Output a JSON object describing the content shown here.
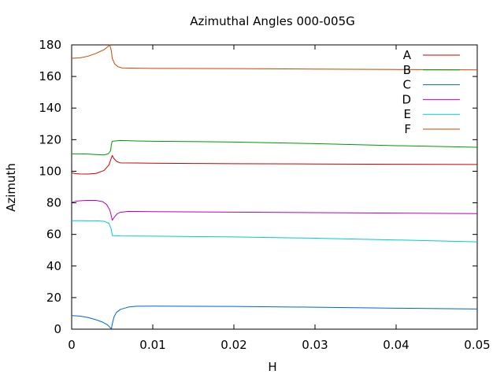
{
  "chart_data": {
    "type": "line",
    "title": "Azimuthal Angles 000-005G",
    "xlabel": "H",
    "ylabel": "Azimuth",
    "xlim": [
      0,
      0.05
    ],
    "ylim": [
      0,
      180
    ],
    "xticks": [
      0,
      0.01,
      0.02,
      0.03,
      0.04,
      0.05
    ],
    "xtick_labels": [
      "0",
      "0.01",
      "0.02",
      "0.03",
      "0.04",
      "0.05"
    ],
    "yticks": [
      0,
      20,
      40,
      60,
      80,
      100,
      120,
      140,
      160,
      180
    ],
    "ytick_labels": [
      "0",
      "20",
      "40",
      "60",
      "80",
      "100",
      "120",
      "140",
      "160",
      "180"
    ],
    "grid": false,
    "legend_position": "top-right",
    "series": [
      {
        "name": "A",
        "color": "#cc0000",
        "points": [
          [
            0,
            99
          ],
          [
            0.0005,
            98.5
          ],
          [
            0.001,
            98.3
          ],
          [
            0.002,
            98.2
          ],
          [
            0.003,
            98.6
          ],
          [
            0.004,
            100.5
          ],
          [
            0.0046,
            104
          ],
          [
            0.0049,
            108.5
          ],
          [
            0.005,
            110
          ],
          [
            0.0052,
            108
          ],
          [
            0.0056,
            106
          ],
          [
            0.006,
            105.3
          ],
          [
            0.008,
            105.2
          ],
          [
            0.01,
            105.1
          ],
          [
            0.015,
            104.9
          ],
          [
            0.02,
            104.8
          ],
          [
            0.03,
            104.6
          ],
          [
            0.04,
            104.4
          ],
          [
            0.05,
            104.3
          ]
        ]
      },
      {
        "name": "B",
        "color": "#009900",
        "points": [
          [
            0,
            111
          ],
          [
            0.001,
            111
          ],
          [
            0.002,
            110.9
          ],
          [
            0.003,
            110.6
          ],
          [
            0.004,
            110.3
          ],
          [
            0.0045,
            111
          ],
          [
            0.0048,
            113
          ],
          [
            0.0049,
            117
          ],
          [
            0.005,
            119
          ],
          [
            0.006,
            119.5
          ],
          [
            0.008,
            119.2
          ],
          [
            0.01,
            119
          ],
          [
            0.02,
            118.5
          ],
          [
            0.03,
            117.5
          ],
          [
            0.04,
            116.2
          ],
          [
            0.05,
            115.2
          ]
        ]
      },
      {
        "name": "C",
        "color": "#0066cc",
        "points": [
          [
            0,
            8.6
          ],
          [
            0.001,
            8.3
          ],
          [
            0.002,
            7.4
          ],
          [
            0.003,
            6
          ],
          [
            0.0038,
            4.5
          ],
          [
            0.0044,
            2.8
          ],
          [
            0.0047,
            1.2
          ],
          [
            0.0049,
            0.3
          ],
          [
            0.005,
            3
          ],
          [
            0.0052,
            7.5
          ],
          [
            0.0055,
            10.5
          ],
          [
            0.006,
            12.5
          ],
          [
            0.007,
            14
          ],
          [
            0.008,
            14.5
          ],
          [
            0.01,
            14.6
          ],
          [
            0.02,
            14.4
          ],
          [
            0.03,
            13.9
          ],
          [
            0.04,
            13.3
          ],
          [
            0.05,
            12.8
          ]
        ]
      },
      {
        "name": "D",
        "color": "#bb00bb",
        "points": [
          [
            0,
            80.3
          ],
          [
            0.0005,
            81
          ],
          [
            0.001,
            81.3
          ],
          [
            0.002,
            81.6
          ],
          [
            0.003,
            81.5
          ],
          [
            0.0038,
            80.8
          ],
          [
            0.0043,
            79
          ],
          [
            0.0047,
            75.5
          ],
          [
            0.0049,
            71.5
          ],
          [
            0.005,
            69
          ],
          [
            0.0052,
            70.5
          ],
          [
            0.0056,
            73
          ],
          [
            0.006,
            74
          ],
          [
            0.007,
            74.6
          ],
          [
            0.01,
            74.4
          ],
          [
            0.02,
            74.1
          ],
          [
            0.03,
            73.8
          ],
          [
            0.04,
            73.5
          ],
          [
            0.05,
            73.2
          ]
        ]
      },
      {
        "name": "E",
        "color": "#00cccc",
        "points": [
          [
            0,
            68.7
          ],
          [
            0.001,
            68.7
          ],
          [
            0.002,
            68.6
          ],
          [
            0.003,
            68.6
          ],
          [
            0.004,
            68.3
          ],
          [
            0.0046,
            67
          ],
          [
            0.0049,
            63
          ],
          [
            0.005,
            59.3
          ],
          [
            0.006,
            59
          ],
          [
            0.01,
            58.9
          ],
          [
            0.02,
            58.4
          ],
          [
            0.03,
            57.6
          ],
          [
            0.04,
            56.5
          ],
          [
            0.05,
            55.3
          ]
        ]
      },
      {
        "name": "F",
        "color": "#cc4400",
        "points": [
          [
            0,
            171.5
          ],
          [
            0.001,
            171.8
          ],
          [
            0.002,
            172.8
          ],
          [
            0.003,
            174.6
          ],
          [
            0.004,
            177
          ],
          [
            0.0045,
            179
          ],
          [
            0.0047,
            180
          ],
          [
            0.0049,
            176
          ],
          [
            0.005,
            171.5
          ],
          [
            0.0053,
            168
          ],
          [
            0.0057,
            166.2
          ],
          [
            0.0062,
            165.4
          ],
          [
            0.008,
            165.2
          ],
          [
            0.01,
            165.1
          ],
          [
            0.02,
            165
          ],
          [
            0.03,
            164.7
          ],
          [
            0.04,
            164.4
          ],
          [
            0.05,
            164.2
          ]
        ]
      }
    ]
  }
}
